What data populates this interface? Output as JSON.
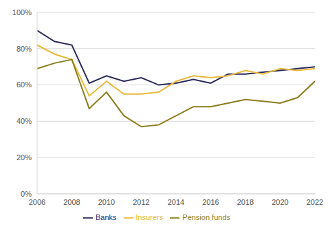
{
  "chart_data": {
    "type": "line",
    "x": [
      2006,
      2007,
      2008,
      2009,
      2010,
      2011,
      2012,
      2013,
      2014,
      2015,
      2016,
      2017,
      2018,
      2019,
      2020,
      2021,
      2022
    ],
    "series": [
      {
        "name": "Banks",
        "color": "#2b2a5c",
        "values": [
          90,
          84,
          82,
          61,
          65,
          62,
          64,
          60,
          61,
          63,
          61,
          66,
          66,
          67,
          68,
          69,
          70
        ]
      },
      {
        "name": "Insurers",
        "color": "#e9b93a",
        "values": [
          82,
          77,
          74,
          54,
          62,
          55,
          55,
          56,
          62,
          65,
          64,
          65,
          68,
          66,
          69,
          68,
          69
        ]
      },
      {
        "name": "Pension funds",
        "color": "#8b7d1e",
        "values": [
          69,
          72,
          74,
          47,
          56,
          43,
          37,
          38,
          43,
          48,
          48,
          50,
          52,
          51,
          50,
          53,
          62
        ]
      }
    ],
    "xlim": [
      2006,
      2022
    ],
    "xticks": [
      2006,
      2008,
      2010,
      2012,
      2014,
      2016,
      2018,
      2020,
      2022
    ],
    "ylim": [
      0,
      100
    ],
    "yticks": [
      {
        "value": 0,
        "label": "0%"
      },
      {
        "value": 20,
        "label": "20%"
      },
      {
        "value": 40,
        "label": "40%"
      },
      {
        "value": 60,
        "label": "60%"
      },
      {
        "value": 80,
        "label": "80%"
      },
      {
        "value": 100,
        "label": "100%"
      }
    ],
    "grid": true,
    "legend": "bottom"
  }
}
